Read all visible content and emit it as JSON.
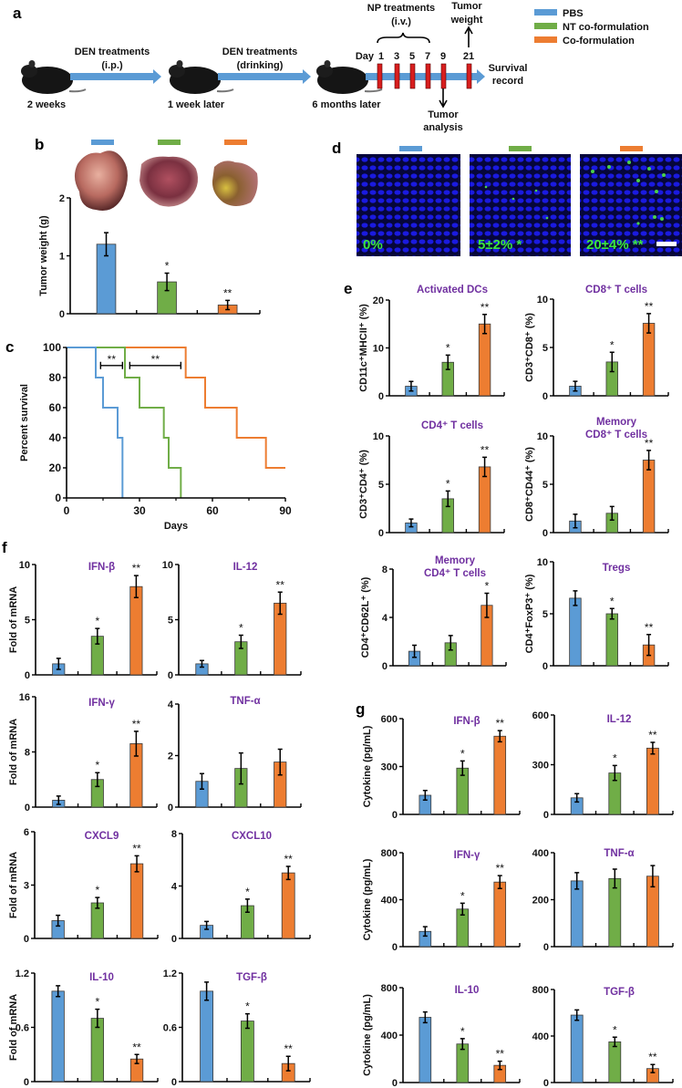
{
  "panel_labels": {
    "a": "a",
    "b": "b",
    "c": "c",
    "d": "d",
    "e": "e",
    "f": "f",
    "g": "g"
  },
  "colors": {
    "PBS": "#5B9BD5",
    "NT co-formulation": "#70AD47",
    "Co-formulation": "#ED7D31",
    "title": "#7030A0",
    "timeline_marker": "#D81E1E"
  },
  "legend": [
    "PBS",
    "NT co-formulation",
    "Co-formulation"
  ],
  "panel_a": {
    "steps": [
      {
        "time": "2 weeks",
        "arrow_label_1": "DEN treatments",
        "arrow_label_2": "(i.p.)"
      },
      {
        "time": "1 week later",
        "arrow_label_1": "DEN treatments",
        "arrow_label_2": "(drinking)"
      },
      {
        "time": "6 months later"
      }
    ],
    "np_label_1": "NP treatments",
    "np_label_2": "(i.v.)",
    "day_label": "Day",
    "days": [
      "1",
      "3",
      "5",
      "7",
      "9",
      "21"
    ],
    "tumor_weight_1": "Tumor",
    "tumor_weight_2": "weight",
    "tumor_analysis_1": "Tumor",
    "tumor_analysis_2": "analysis",
    "survival_1": "Survival",
    "survival_2": "record",
    "icons": [
      "mouse-icon",
      "arrow-right-icon",
      "brace-icon"
    ]
  },
  "panel_d": {
    "labels": [
      "0%",
      "5±2% *",
      "20±4% **"
    ]
  },
  "chart_data": [
    {
      "type": "bar",
      "panel": "b",
      "title": "",
      "ylabel": "Tumor weight (g)",
      "ylim": [
        0,
        2
      ],
      "yticks": [
        "0",
        "1",
        "2"
      ],
      "categories": [
        "PBS",
        "NT co-formulation",
        "Co-formulation"
      ],
      "values": [
        1.2,
        0.55,
        0.15
      ],
      "errors": [
        0.2,
        0.15,
        0.08
      ],
      "sig": [
        "",
        "*",
        "**"
      ]
    },
    {
      "type": "line",
      "panel": "c",
      "title": "",
      "xlabel": "Days",
      "ylabel": "Percent survival",
      "xlim": [
        0,
        90
      ],
      "ylim": [
        0,
        100
      ],
      "xticks": [
        "0",
        "30",
        "60",
        "90"
      ],
      "yticks": [
        "0",
        "20",
        "40",
        "60",
        "80",
        "100"
      ],
      "series": [
        {
          "name": "PBS",
          "x": [
            0,
            12,
            12,
            15,
            15,
            21,
            21,
            23,
            23
          ],
          "y": [
            100,
            100,
            80,
            80,
            60,
            60,
            40,
            40,
            0
          ]
        },
        {
          "name": "NT co-formulation",
          "x": [
            0,
            24,
            24,
            30,
            30,
            40,
            40,
            42,
            42,
            47,
            47
          ],
          "y": [
            100,
            100,
            80,
            80,
            60,
            60,
            40,
            40,
            20,
            20,
            0
          ]
        },
        {
          "name": "Co-formulation",
          "x": [
            0,
            49,
            49,
            57,
            57,
            70,
            70,
            82,
            82,
            90
          ],
          "y": [
            100,
            100,
            80,
            80,
            60,
            60,
            40,
            40,
            20,
            20
          ]
        }
      ],
      "annotations": [
        {
          "text": "**",
          "x": [
            14,
            23
          ],
          "y": 88
        },
        {
          "text": "**",
          "x": [
            26,
            47
          ],
          "y": 88
        }
      ]
    },
    {
      "type": "bar",
      "panel": "e",
      "title": "Activated DCs",
      "ylabel": "CD11c⁺MHCII⁺ (%)",
      "ylim": [
        0,
        20
      ],
      "yticks": [
        "0",
        "10",
        "20"
      ],
      "values": [
        2,
        7,
        15
      ],
      "errors": [
        1,
        1.5,
        2
      ],
      "sig": [
        "",
        "*",
        "**"
      ]
    },
    {
      "type": "bar",
      "panel": "e",
      "title": "CD8⁺ T cells",
      "ylabel": "CD3⁺CD8⁺ (%)",
      "ylim": [
        0,
        10
      ],
      "yticks": [
        "0",
        "5",
        "10"
      ],
      "values": [
        1,
        3.5,
        7.5
      ],
      "errors": [
        0.5,
        1,
        1
      ],
      "sig": [
        "",
        "*",
        "**"
      ]
    },
    {
      "type": "bar",
      "panel": "e",
      "title": "CD4⁺ T cells",
      "ylabel": "CD3⁺CD4⁺ (%)",
      "ylim": [
        0,
        10
      ],
      "yticks": [
        "0",
        "5",
        "10"
      ],
      "values": [
        1,
        3.5,
        6.8
      ],
      "errors": [
        0.4,
        0.8,
        1
      ],
      "sig": [
        "",
        "*",
        "**"
      ]
    },
    {
      "type": "bar",
      "panel": "e",
      "title": "Memory\nCD8⁺ T cells",
      "ylabel": "CD8⁺CD44⁺ (%)",
      "ylim": [
        0,
        10
      ],
      "yticks": [
        "0",
        "5",
        "10"
      ],
      "values": [
        1.2,
        2,
        7.5
      ],
      "errors": [
        0.7,
        0.7,
        1
      ],
      "sig": [
        "",
        "",
        "**"
      ]
    },
    {
      "type": "bar",
      "panel": "e",
      "title": "Memory\nCD4⁺ T cells",
      "ylabel": "CD4⁺CD62L⁺ (%)",
      "ylim": [
        0,
        8
      ],
      "yticks": [
        "0",
        "4",
        "8"
      ],
      "values": [
        1.2,
        1.9,
        5
      ],
      "errors": [
        0.5,
        0.6,
        1
      ],
      "sig": [
        "",
        "",
        "*"
      ]
    },
    {
      "type": "bar",
      "panel": "e",
      "title": "Tregs",
      "ylabel": "CD4⁺FoxP3⁺ (%)",
      "ylim": [
        0,
        10
      ],
      "yticks": [
        "0",
        "5",
        "10"
      ],
      "values": [
        6.5,
        5,
        2
      ],
      "errors": [
        0.7,
        0.5,
        1
      ],
      "sig": [
        "",
        "*",
        "**"
      ]
    },
    {
      "type": "bar",
      "panel": "f",
      "title": "IFN-β",
      "ylabel": "Fold of mRNA",
      "ylim": [
        0,
        10
      ],
      "yticks": [
        "0",
        "5",
        "10"
      ],
      "values": [
        1,
        3.5,
        8
      ],
      "errors": [
        0.5,
        0.7,
        1
      ],
      "sig": [
        "",
        "*",
        "**"
      ]
    },
    {
      "type": "bar",
      "panel": "f",
      "title": "IL-12",
      "ylabel": "",
      "ylim": [
        0,
        10
      ],
      "yticks": [
        "0",
        "5",
        "10"
      ],
      "values": [
        1,
        3,
        6.5
      ],
      "errors": [
        0.3,
        0.6,
        1
      ],
      "sig": [
        "",
        "*",
        "**"
      ]
    },
    {
      "type": "bar",
      "panel": "f",
      "title": "IFN-γ",
      "ylabel": "Fold of mRNA",
      "ylim": [
        0,
        16
      ],
      "yticks": [
        "0",
        "8",
        "16"
      ],
      "values": [
        1,
        4,
        9.2
      ],
      "errors": [
        0.6,
        1,
        1.8
      ],
      "sig": [
        "",
        "*",
        "**"
      ]
    },
    {
      "type": "bar",
      "panel": "f",
      "title": "TNF-α",
      "ylabel": "",
      "ylim": [
        0,
        4
      ],
      "yticks": [
        "0",
        "2",
        "4"
      ],
      "values": [
        1,
        1.5,
        1.75
      ],
      "errors": [
        0.3,
        0.6,
        0.5
      ],
      "sig": [
        "",
        "",
        ""
      ]
    },
    {
      "type": "bar",
      "panel": "f",
      "title": "CXCL9",
      "ylabel": "Fold of mRNA",
      "ylim": [
        0,
        6
      ],
      "yticks": [
        "0",
        "3",
        "6"
      ],
      "values": [
        1,
        2,
        4.2
      ],
      "errors": [
        0.3,
        0.3,
        0.45
      ],
      "sig": [
        "",
        "*",
        "**"
      ]
    },
    {
      "type": "bar",
      "panel": "f",
      "title": "CXCL10",
      "ylabel": "",
      "ylim": [
        0,
        8
      ],
      "yticks": [
        "0",
        "4",
        "8"
      ],
      "values": [
        1,
        2.5,
        5
      ],
      "errors": [
        0.3,
        0.5,
        0.5
      ],
      "sig": [
        "",
        "*",
        "**"
      ]
    },
    {
      "type": "bar",
      "panel": "f",
      "title": "IL-10",
      "ylabel": "Fold of mRNA",
      "ylim": [
        0,
        1.2
      ],
      "yticks": [
        "0",
        "0.6",
        "1.2"
      ],
      "values": [
        1,
        0.7,
        0.25
      ],
      "errors": [
        0.06,
        0.1,
        0.05
      ],
      "sig": [
        "",
        "*",
        "**"
      ]
    },
    {
      "type": "bar",
      "panel": "f",
      "title": "TGF-β",
      "ylabel": "",
      "ylim": [
        0,
        1.2
      ],
      "yticks": [
        "0",
        "0.6",
        "1.2"
      ],
      "values": [
        1,
        0.67,
        0.2
      ],
      "errors": [
        0.1,
        0.08,
        0.08
      ],
      "sig": [
        "",
        "*",
        "**"
      ]
    },
    {
      "type": "bar",
      "panel": "g",
      "title": "IFN-β",
      "ylabel": "Cytokine (pg/mL)",
      "ylim": [
        0,
        600
      ],
      "yticks": [
        "0",
        "300",
        "600"
      ],
      "values": [
        120,
        290,
        490
      ],
      "errors": [
        30,
        45,
        35
      ],
      "sig": [
        "",
        "*",
        "**"
      ]
    },
    {
      "type": "bar",
      "panel": "g",
      "title": "IL-12",
      "ylabel": "",
      "ylim": [
        0,
        600
      ],
      "yticks": [
        "0",
        "300",
        "600"
      ],
      "values": [
        100,
        250,
        400
      ],
      "errors": [
        25,
        45,
        35
      ],
      "sig": [
        "",
        "*",
        "**"
      ]
    },
    {
      "type": "bar",
      "panel": "g",
      "title": "IFN-γ",
      "ylabel": "Cytokine (pg/mL)",
      "ylim": [
        0,
        800
      ],
      "yticks": [
        "0",
        "400",
        "800"
      ],
      "values": [
        130,
        320,
        550
      ],
      "errors": [
        40,
        50,
        55
      ],
      "sig": [
        "",
        "*",
        "**"
      ]
    },
    {
      "type": "bar",
      "panel": "g",
      "title": "TNF-α",
      "ylabel": "",
      "ylim": [
        0,
        400
      ],
      "yticks": [
        "0",
        "200",
        "400"
      ],
      "values": [
        280,
        290,
        300
      ],
      "errors": [
        35,
        40,
        45
      ],
      "sig": [
        "",
        "",
        ""
      ]
    },
    {
      "type": "bar",
      "panel": "g",
      "title": "IL-10",
      "ylabel": "Cytokine (pg/mL)",
      "ylim": [
        0,
        800
      ],
      "yticks": [
        "0",
        "400",
        "800"
      ],
      "values": [
        550,
        325,
        145
      ],
      "errors": [
        45,
        45,
        35
      ],
      "sig": [
        "",
        "*",
        "**"
      ]
    },
    {
      "type": "bar",
      "panel": "g",
      "title": "TGF-β",
      "ylabel": "",
      "ylim": [
        0,
        800
      ],
      "yticks": [
        "0",
        "400",
        "800"
      ],
      "values": [
        580,
        350,
        120
      ],
      "errors": [
        45,
        40,
        35
      ],
      "sig": [
        "",
        "*",
        "**"
      ]
    }
  ]
}
